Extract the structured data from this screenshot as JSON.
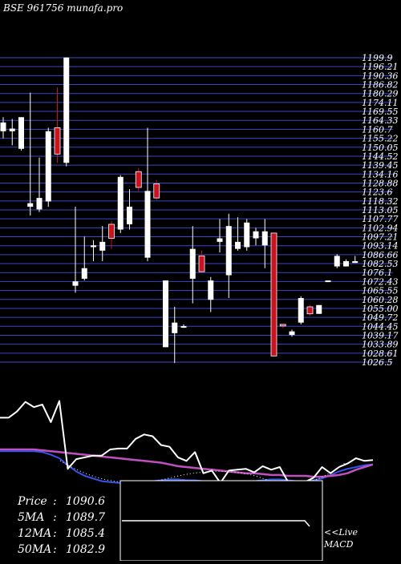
{
  "header": {
    "text": "BSE 961756  munafa.pro"
  },
  "colors": {
    "background": "#000000",
    "grid": "#3b47c9",
    "up": "#ffffff",
    "down": "#c8141e",
    "price_line": "#ffffff",
    "ma_slow": "#c050c0",
    "ma_fast": "#3355ee",
    "signal": "#ffffff"
  },
  "chart_data": [
    {
      "type": "candlestick",
      "title": "BSE 961756",
      "ylim": [
        1026.5,
        1199.9
      ],
      "y_ticks": [
        "1199.9",
        "1196.21",
        "1190.36",
        "1186.82",
        "1180.29",
        "1174.11",
        "1169.55",
        "1164.33",
        "1160.7",
        "1155.22",
        "1150.05",
        "1144.52",
        "1139.45",
        "1134.16",
        "1128.88",
        "1123.6",
        "1118.32",
        "1113.05",
        "1107.77",
        "1102.94",
        "1097.21",
        "1093.14",
        "1086.66",
        "1082.53",
        "1076.1",
        "1072.43",
        "1065.55",
        "1060.28",
        "1055.00",
        "1049.72",
        "1044.45",
        "1039.17",
        "1033.89",
        "1028.61",
        "1026.5"
      ],
      "candles": [
        {
          "o": 1163.0,
          "h": 1166.0,
          "l": 1154.0,
          "c": 1158.0,
          "dir": "up"
        },
        {
          "o": 1158.0,
          "h": 1165.0,
          "l": 1150.0,
          "c": 1159.5,
          "dir": "up"
        },
        {
          "o": 1166.0,
          "h": 1166.0,
          "l": 1147.0,
          "c": 1148.0,
          "dir": "up"
        },
        {
          "o": 1115.0,
          "h": 1180.0,
          "l": 1110.0,
          "c": 1117.0,
          "dir": "up"
        },
        {
          "o": 1113.5,
          "h": 1143.0,
          "l": 1112.0,
          "c": 1120.0,
          "dir": "up"
        },
        {
          "o": 1118.0,
          "h": 1160.0,
          "l": 1115.0,
          "c": 1158.0,
          "dir": "up"
        },
        {
          "o": 1145.0,
          "h": 1183.0,
          "l": 1140.0,
          "c": 1160.0,
          "dir": "down"
        },
        {
          "o": 1140.0,
          "h": 1200.0,
          "l": 1138.0,
          "c": 1200.0,
          "dir": "up"
        },
        {
          "o": 1070.0,
          "h": 1115.0,
          "l": 1066.0,
          "c": 1072.5,
          "dir": "up"
        },
        {
          "o": 1074.0,
          "h": 1098.0,
          "l": 1073.0,
          "c": 1080.0,
          "dir": "up"
        },
        {
          "o": 1092.0,
          "h": 1096.0,
          "l": 1084.0,
          "c": 1093.0,
          "dir": "up"
        },
        {
          "o": 1090.0,
          "h": 1104.0,
          "l": 1084.0,
          "c": 1095.0,
          "dir": "up"
        },
        {
          "o": 1105.0,
          "h": 1107.0,
          "l": 1091.0,
          "c": 1097.0,
          "dir": "down"
        },
        {
          "o": 1102.0,
          "h": 1133.0,
          "l": 1100.0,
          "c": 1132.0,
          "dir": "up"
        },
        {
          "o": 1105.0,
          "h": 1125.0,
          "l": 1102.0,
          "c": 1115.0,
          "dir": "up"
        },
        {
          "o": 1135.0,
          "h": 1137.0,
          "l": 1124.0,
          "c": 1126.0,
          "dir": "down"
        },
        {
          "o": 1086.0,
          "h": 1160.0,
          "l": 1084.0,
          "c": 1124.0,
          "dir": "up"
        },
        {
          "o": 1128.0,
          "h": 1130.0,
          "l": 1119.0,
          "c": 1120.0,
          "dir": "down"
        },
        {
          "o": 1035.0,
          "h": 1073.0,
          "l": 1035.0,
          "c": 1073.0,
          "dir": "up"
        },
        {
          "o": 1043.0,
          "h": 1058.0,
          "l": 1026.0,
          "c": 1049.0,
          "dir": "up"
        },
        {
          "o": 1047.0,
          "h": 1048.0,
          "l": 1046.0,
          "c": 1047.0,
          "dir": "up"
        },
        {
          "o": 1074.0,
          "h": 1104.0,
          "l": 1060.0,
          "c": 1091.0,
          "dir": "up"
        },
        {
          "o": 1078.0,
          "h": 1090.0,
          "l": 1078.0,
          "c": 1087.0,
          "dir": "down"
        },
        {
          "o": 1062.0,
          "h": 1075.0,
          "l": 1055.0,
          "c": 1073.0,
          "dir": "up"
        },
        {
          "o": 1095.0,
          "h": 1108.0,
          "l": 1089.0,
          "c": 1097.0,
          "dir": "up"
        },
        {
          "o": 1076.0,
          "h": 1111.0,
          "l": 1063.0,
          "c": 1104.0,
          "dir": "up"
        },
        {
          "o": 1091.0,
          "h": 1109.0,
          "l": 1090.0,
          "c": 1095.0,
          "dir": "up"
        },
        {
          "o": 1092.0,
          "h": 1108.0,
          "l": 1090.0,
          "c": 1106.0,
          "dir": "up"
        },
        {
          "o": 1097.0,
          "h": 1103.0,
          "l": 1093.0,
          "c": 1101.0,
          "dir": "up"
        },
        {
          "o": 1093.0,
          "h": 1108.0,
          "l": 1080.0,
          "c": 1101.0,
          "dir": "up"
        },
        {
          "o": 1100.0,
          "h": 1100.0,
          "l": 1030.0,
          "c": 1030.0,
          "dir": "down"
        },
        {
          "o": 1048.0,
          "h": 1048.0,
          "l": 1046.0,
          "c": 1048.0,
          "dir": "down"
        },
        {
          "o": 1042.0,
          "h": 1045.0,
          "l": 1041.0,
          "c": 1044.0,
          "dir": "up"
        },
        {
          "o": 1049.0,
          "h": 1064.0,
          "l": 1048.0,
          "c": 1063.0,
          "dir": "up"
        },
        {
          "o": 1054.0,
          "h": 1059.0,
          "l": 1053.0,
          "c": 1058.0,
          "dir": "down"
        },
        {
          "o": 1054.0,
          "h": 1059.0,
          "l": 1054.0,
          "c": 1059.0,
          "dir": "up"
        },
        {
          "o": 1073.0,
          "h": 1073.0,
          "l": 1073.0,
          "c": 1073.0,
          "dir": "up"
        },
        {
          "o": 1081.0,
          "h": 1088.0,
          "l": 1080.0,
          "c": 1087.0,
          "dir": "up"
        },
        {
          "o": 1081.0,
          "h": 1085.0,
          "l": 1081.0,
          "c": 1084.0,
          "dir": "up"
        },
        {
          "o": 1083.0,
          "h": 1087.0,
          "l": 1083.0,
          "c": 1084.0,
          "dir": "up"
        }
      ]
    },
    {
      "type": "line",
      "title": "MACD",
      "series": [
        {
          "name": "price",
          "values": [
            0.24,
            0.24,
            0.17,
            0.06,
            0.12,
            0.09,
            0.29,
            0.05,
            0.82,
            0.71,
            0.69,
            0.67,
            0.67,
            0.6,
            0.59,
            0.59,
            0.48,
            0.43,
            0.45,
            0.55,
            0.57,
            0.69,
            0.73,
            0.63,
            0.87,
            0.84,
            0.98,
            0.84,
            0.83,
            0.82,
            0.86,
            0.79,
            0.83,
            0.8,
            0.97,
            0.97,
            0.97,
            0.92,
            0.8,
            0.87,
            0.8,
            0.76,
            0.7,
            0.73,
            0.72
          ]
        },
        {
          "name": "ma_slow",
          "values": [
            0.6,
            0.6,
            0.6,
            0.6,
            0.6,
            0.61,
            0.62,
            0.63,
            0.64,
            0.65,
            0.66,
            0.67,
            0.68,
            0.69,
            0.7,
            0.71,
            0.72,
            0.73,
            0.74,
            0.75,
            0.77,
            0.79,
            0.8,
            0.81,
            0.82,
            0.83,
            0.84,
            0.85,
            0.86,
            0.87,
            0.87,
            0.88,
            0.89,
            0.89,
            0.9,
            0.9,
            0.9,
            0.91,
            0.91,
            0.9,
            0.89,
            0.87,
            0.83,
            0.8,
            0.77
          ]
        },
        {
          "name": "ma_fast",
          "values": [
            0.62,
            0.62,
            0.62,
            0.62,
            0.62,
            0.63,
            0.66,
            0.7,
            0.78,
            0.85,
            0.9,
            0.93,
            0.96,
            0.97,
            0.98,
            0.98,
            0.98,
            0.97,
            0.96,
            0.95,
            0.94,
            0.94,
            0.95,
            0.95,
            0.96,
            0.97,
            0.98,
            0.98,
            0.97,
            0.96,
            0.96,
            0.95,
            0.94,
            0.94,
            0.95,
            0.96,
            0.96,
            0.95,
            0.93,
            0.89,
            0.85,
            0.82,
            0.8,
            0.78,
            0.77
          ]
        }
      ]
    }
  ],
  "stats": [
    {
      "label": "Price",
      "sep": ":",
      "value": "1090.6"
    },
    {
      "label": "5MA",
      "sep": ":",
      "value": "1089.7"
    },
    {
      "label": "12MA",
      "sep": ":",
      "value": "1085.4"
    },
    {
      "label": "50MA",
      "sep": ":",
      "value": "1082.9"
    }
  ],
  "macd_box": {
    "label_line1": "<<Live",
    "label_line2": "MACD"
  }
}
